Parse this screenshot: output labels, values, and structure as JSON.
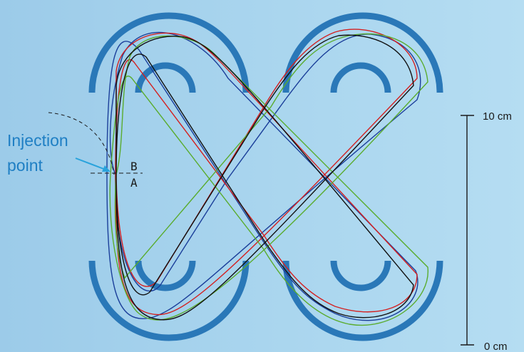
{
  "labels": {
    "injection_line1": "Injection",
    "injection_line2": "point",
    "section_b": "B",
    "section_a": "A",
    "scale_top": "10 cm",
    "scale_bottom": "0 cm"
  },
  "colors": {
    "background": "#a9d5ee",
    "magnet": "#2a78b8",
    "label_text": "#1f7fc4",
    "arrow": "#29a3dc",
    "scale": "#1a1a1a",
    "orbit_blue": "#1b3f9a",
    "orbit_red": "#d42020",
    "orbit_green": "#5aac2e",
    "orbit_black": "#111111"
  },
  "icons": {
    "magnet_arc": "thick-arc-shape",
    "injection_arrow": "arrow-right-down"
  }
}
